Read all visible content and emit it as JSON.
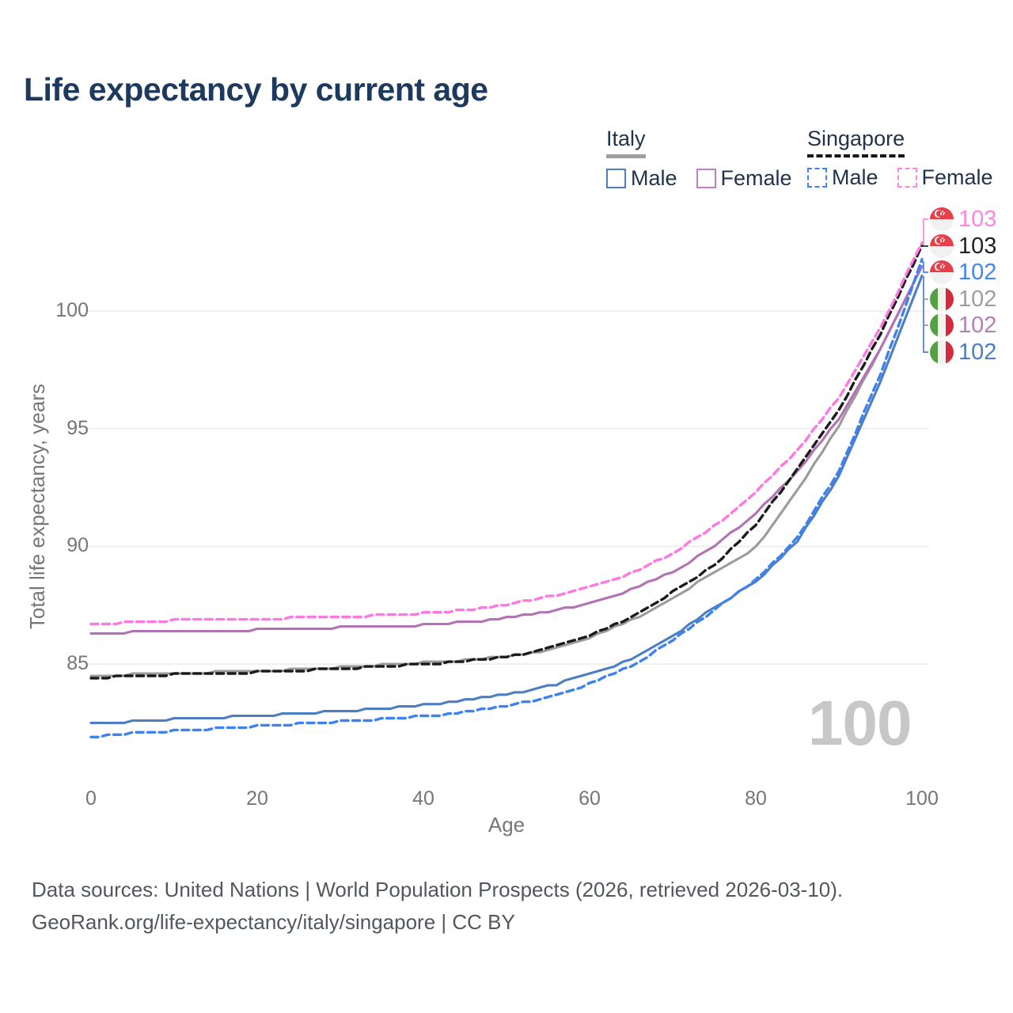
{
  "title": "Life expectancy by current age",
  "watermark": "100",
  "legend": {
    "italy": {
      "label": "Italy",
      "male": "Male",
      "female": "Female",
      "male_color": "#4d7ec2",
      "female_color": "#c37fc3",
      "line_color": "#9e9e9e",
      "line_style": "solid"
    },
    "singapore": {
      "label": "Singapore",
      "male": "Male",
      "female": "Female",
      "male_color": "#3e82f1",
      "female_color": "#ff85e2",
      "line_color": "#161616",
      "line_style": "dashed"
    }
  },
  "footer": {
    "line1": "Data sources: United Nations | World Population Prospects (2026, retrieved 2026-03-10).",
    "line2": "GeoRank.org/life-expectancy/italy/singapore | CC BY"
  },
  "chart_data": {
    "type": "line",
    "title": "Life expectancy by current age",
    "xlabel": "Age",
    "ylabel": "Total life expectancy, years",
    "xlim": [
      0,
      100
    ],
    "ylim": [
      80.5,
      104
    ],
    "x_ticks": [
      0,
      20,
      40,
      60,
      80,
      100
    ],
    "y_ticks": [
      85,
      90,
      95,
      100
    ],
    "grid": "horizontal",
    "legend_position": "top-right",
    "ages": [
      0,
      5,
      10,
      15,
      20,
      25,
      30,
      35,
      40,
      45,
      50,
      55,
      60,
      65,
      70,
      75,
      80,
      85,
      90,
      95,
      100
    ],
    "series": [
      {
        "name": "Italy Total",
        "country": "Italy",
        "sex": "Total",
        "color": "#9b9b9b",
        "dash": false,
        "values": [
          84.5,
          84.55,
          84.6,
          84.65,
          84.7,
          84.78,
          84.86,
          84.95,
          85.05,
          85.17,
          85.32,
          85.6,
          86.1,
          86.85,
          87.8,
          88.9,
          89.95,
          92.4,
          95.1,
          98.4,
          101.85
        ]
      },
      {
        "name": "Italy Female",
        "country": "Italy",
        "sex": "Female",
        "color": "#b173b3",
        "dash": false,
        "values": [
          86.3,
          86.35,
          86.38,
          86.4,
          86.45,
          86.5,
          86.55,
          86.6,
          86.65,
          86.78,
          86.95,
          87.2,
          87.6,
          88.15,
          88.9,
          90.0,
          91.4,
          93.15,
          95.4,
          98.4,
          101.9
        ]
      },
      {
        "name": "Italy Male",
        "country": "Italy",
        "sex": "Male",
        "color": "#4d7ec2",
        "dash": false,
        "values": [
          82.45,
          82.55,
          82.65,
          82.72,
          82.8,
          82.9,
          83.0,
          83.12,
          83.25,
          83.45,
          83.7,
          84.05,
          84.55,
          85.2,
          86.2,
          87.4,
          88.5,
          90.2,
          93.0,
          97.0,
          101.5
        ]
      },
      {
        "name": "Singapore Total",
        "country": "Singapore",
        "sex": "Total",
        "color": "#1b1b1b",
        "dash": true,
        "values": [
          84.4,
          84.5,
          84.55,
          84.6,
          84.65,
          84.72,
          84.8,
          84.9,
          85.0,
          85.12,
          85.3,
          85.65,
          86.2,
          87.0,
          88.05,
          89.2,
          90.9,
          93.3,
          95.8,
          99.0,
          102.8
        ]
      },
      {
        "name": "Singapore Female",
        "country": "Singapore",
        "sex": "Female",
        "color": "#ff78e1",
        "dash": true,
        "values": [
          86.65,
          86.8,
          86.85,
          86.9,
          86.92,
          86.96,
          87.0,
          87.07,
          87.15,
          87.3,
          87.52,
          87.85,
          88.25,
          88.85,
          89.7,
          90.85,
          92.3,
          94.1,
          96.3,
          99.3,
          102.9
        ]
      },
      {
        "name": "Singapore Male",
        "country": "Singapore",
        "sex": "Male",
        "color": "#3e82f1",
        "dash": true,
        "values": [
          81.9,
          82.05,
          82.15,
          82.25,
          82.35,
          82.45,
          82.55,
          82.65,
          82.78,
          82.95,
          83.2,
          83.6,
          84.15,
          84.9,
          86.0,
          87.3,
          88.55,
          90.35,
          93.2,
          97.3,
          102.15
        ]
      }
    ],
    "end_labels": [
      {
        "value": "103",
        "country": "singapore",
        "color": "#ff85e2",
        "flag": "singapore-flag-icon"
      },
      {
        "value": "103",
        "country": "singapore",
        "color": "#222222",
        "flag": "singapore-flag-icon"
      },
      {
        "value": "102",
        "country": "singapore",
        "color": "#4285f4",
        "flag": "singapore-flag-icon"
      },
      {
        "value": "102",
        "country": "italy",
        "color": "#9e9e9e",
        "flag": "italy-flag-icon"
      },
      {
        "value": "102",
        "country": "italy",
        "color": "#b57fb8",
        "flag": "italy-flag-icon"
      },
      {
        "value": "102",
        "country": "italy",
        "color": "#4d7ec2",
        "flag": "italy-flag-icon"
      }
    ]
  }
}
